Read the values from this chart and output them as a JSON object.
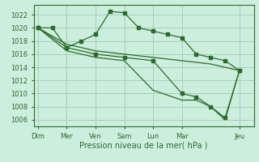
{
  "xlabel": "Pression niveau de la mer( hPa )",
  "bg_color": "#cceedd",
  "grid_color": "#aaccbb",
  "line_color": "#2d6b2d",
  "ylim": [
    1005,
    1023.5
  ],
  "yticks": [
    1006,
    1008,
    1010,
    1012,
    1014,
    1016,
    1018,
    1020,
    1022
  ],
  "xtick_labels": [
    "Dim",
    "Mer",
    "Ven",
    "Sam",
    "Lun",
    "Mar",
    "Jeu"
  ],
  "xtick_positions": [
    0,
    2,
    4,
    6,
    8,
    10,
    14
  ],
  "xlim": [
    -0.3,
    15.0
  ],
  "series1": {
    "x": [
      0,
      1,
      2,
      3,
      4,
      5,
      6,
      7,
      8,
      9,
      10,
      11,
      12,
      13,
      14
    ],
    "y": [
      1020,
      1020,
      1017,
      1018,
      1019,
      1022.5,
      1022.3,
      1020,
      1019.5,
      1019,
      1018.5,
      1016,
      1015.5,
      1015,
      1013.5
    ]
  },
  "series2": {
    "x": [
      0,
      2,
      4,
      6,
      8,
      10,
      12,
      14
    ],
    "y": [
      1020,
      1017.5,
      1016.5,
      1016,
      1015.5,
      1015,
      1014.5,
      1013.5
    ]
  },
  "series3": {
    "x": [
      0,
      2,
      4,
      6,
      8,
      10,
      11,
      12,
      13,
      14
    ],
    "y": [
      1020,
      1017,
      1016,
      1015.5,
      1015,
      1010,
      1009.5,
      1008,
      1006.3,
      1013.5
    ]
  },
  "series4": {
    "x": [
      0,
      2,
      4,
      6,
      8,
      10,
      11,
      12,
      13,
      14
    ],
    "y": [
      1020,
      1016.5,
      1015.5,
      1015,
      1010.5,
      1009,
      1009,
      1008,
      1006,
      1013.5
    ]
  }
}
